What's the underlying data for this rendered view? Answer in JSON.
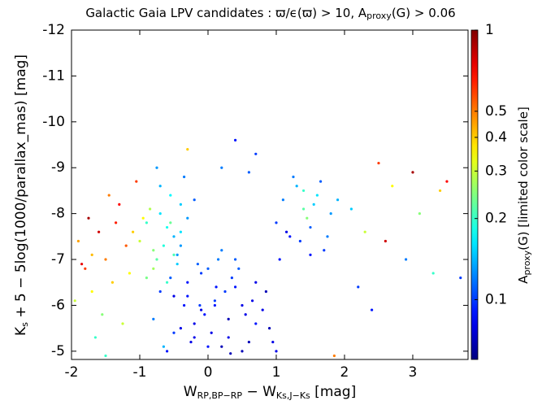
{
  "chart_data": {
    "type": "scatter",
    "title": [
      "Galactic Gaia LPV candidates :  ϖ/ϵ(ϖ) > 10,  A",
      "proxy",
      "(G) > 0.06"
    ],
    "x_label": [
      "W",
      "RP,BP−RP",
      " − W",
      "Ks,J−Ks",
      "  [mag]"
    ],
    "y_label": [
      "K",
      "s",
      " + 5 − 5log(1000/parallax_mas)  [mag]"
    ],
    "colorbar_label": [
      "A",
      "proxy",
      "(G)  [limited color scale]"
    ],
    "xlim": [
      -2,
      3.81
    ],
    "xticks": [
      -2,
      -1,
      0,
      1,
      2,
      3
    ],
    "ylim": [
      -4.82,
      -12
    ],
    "yticks": [
      -12,
      -11,
      -10,
      -9,
      -8,
      -7,
      -6,
      -5
    ],
    "colormap": "jet",
    "color_scale": "log",
    "clim": [
      0.06,
      1
    ],
    "cticks": [
      0.1,
      0.2,
      0.3,
      0.4,
      0.5,
      1
    ],
    "x": [
      -0.5,
      -0.3,
      -0.1,
      0.1,
      0.3,
      0.5,
      0.7,
      -0.7,
      -0.2,
      0.2,
      0.0,
      0.4,
      -0.4,
      0.6,
      0.8,
      -0.6,
      0.15,
      -0.15,
      0.35,
      -0.35,
      0.05,
      -0.05,
      0.25,
      -0.25,
      0.45,
      -0.45,
      0.65,
      0.9,
      1.0,
      -0.8,
      0.1,
      -0.1,
      0.3,
      -0.3,
      0.5,
      -0.5,
      0.2,
      -0.2,
      0.0,
      0.7,
      -0.4,
      0.4,
      0.55,
      -0.55,
      0.85,
      0.95,
      -0.65,
      0.12,
      -0.12,
      0.33,
      -0.9,
      -0.7,
      -0.5,
      -0.8,
      -0.6,
      -0.4,
      -1.0,
      -0.75,
      -0.55,
      -0.3,
      -0.85,
      -0.65,
      -0.45,
      -0.95,
      -0.7,
      -0.5,
      -0.35,
      -0.8,
      -0.6,
      -1.1,
      -0.9,
      -0.4,
      -0.2,
      -0.75,
      -0.55,
      -1.9,
      -1.8,
      -1.7,
      -1.6,
      -1.5,
      -1.4,
      -1.3,
      -1.2,
      -1.95,
      -1.75,
      -1.55,
      -1.35,
      -1.15,
      -1.65,
      -1.45,
      -1.25,
      -1.85,
      -1.05,
      -1.5,
      -1.7,
      1.0,
      1.1,
      1.2,
      1.3,
      1.4,
      1.5,
      1.6,
      1.7,
      1.8,
      1.05,
      1.25,
      1.45,
      1.65,
      1.35,
      1.55,
      1.15,
      1.75,
      1.4,
      1.5,
      1.9,
      2.1,
      2.3,
      2.5,
      2.7,
      2.9,
      3.1,
      3.3,
      3.5,
      3.7,
      2.2,
      2.6,
      3.0,
      3.4,
      2.4,
      1.85,
      0.4,
      0.7,
      0.6,
      -0.3,
      0.2
    ],
    "y": [
      -6.2,
      -6.5,
      -5.9,
      -6.1,
      -5.7,
      -6.0,
      -5.6,
      -6.3,
      -5.3,
      -5.1,
      -6.8,
      -6.4,
      -5.5,
      -5.2,
      -5.9,
      -5.0,
      -7.0,
      -6.9,
      -6.6,
      -6.0,
      -5.4,
      -5.8,
      -6.3,
      -5.2,
      -6.8,
      -7.1,
      -6.1,
      -5.5,
      -5.0,
      -5.7,
      -6.0,
      -6.7,
      -5.3,
      -6.2,
      -5.0,
      -5.4,
      -7.2,
      -5.6,
      -5.1,
      -6.5,
      -7.3,
      -7.0,
      -5.8,
      -6.6,
      -6.3,
      -5.2,
      -5.1,
      -6.4,
      -6.0,
      -4.95,
      -7.8,
      -8.0,
      -7.5,
      -7.2,
      -7.7,
      -8.2,
      -7.4,
      -7.0,
      -8.4,
      -7.9,
      -8.1,
      -7.3,
      -6.9,
      -7.9,
      -8.6,
      -7.1,
      -8.8,
      -6.8,
      -6.5,
      -7.6,
      -6.6,
      -7.6,
      -8.3,
      -9.0,
      -7.8,
      -7.4,
      -6.8,
      -6.3,
      -7.6,
      -7.0,
      -6.5,
      -8.2,
      -7.3,
      -6.1,
      -7.9,
      -5.8,
      -7.8,
      -6.7,
      -5.3,
      -8.4,
      -5.6,
      -6.9,
      -8.7,
      -4.9,
      -7.1,
      -7.8,
      -8.3,
      -7.5,
      -8.6,
      -8.1,
      -7.7,
      -8.4,
      -7.2,
      -8.0,
      -7.0,
      -8.8,
      -7.9,
      -8.7,
      -7.4,
      -8.2,
      -7.6,
      -7.5,
      -8.5,
      -7.1,
      -8.3,
      -8.1,
      -7.6,
      -9.1,
      -8.6,
      -7.0,
      -8.0,
      -6.7,
      -8.7,
      -6.6,
      -6.4,
      -7.4,
      -8.9,
      -8.5,
      -5.9,
      -4.9,
      -9.6,
      -9.3,
      -8.9,
      -9.4,
      -9.0
    ],
    "color_values": [
      0.08,
      0.09,
      0.08,
      0.1,
      0.07,
      0.08,
      0.09,
      0.1,
      0.08,
      0.07,
      0.11,
      0.09,
      0.08,
      0.07,
      0.08,
      0.09,
      0.12,
      0.11,
      0.1,
      0.09,
      0.08,
      0.09,
      0.1,
      0.08,
      0.11,
      0.13,
      0.08,
      0.07,
      0.08,
      0.12,
      0.09,
      0.1,
      0.08,
      0.09,
      0.07,
      0.1,
      0.12,
      0.08,
      0.09,
      0.08,
      0.13,
      0.11,
      0.08,
      0.11,
      0.07,
      0.08,
      0.14,
      0.09,
      0.1,
      0.07,
      0.2,
      0.16,
      0.14,
      0.25,
      0.18,
      0.15,
      0.3,
      0.22,
      0.17,
      0.13,
      0.28,
      0.19,
      0.15,
      0.35,
      0.14,
      0.21,
      0.12,
      0.27,
      0.2,
      0.4,
      0.24,
      0.16,
      0.11,
      0.13,
      0.23,
      0.45,
      0.6,
      0.35,
      0.8,
      0.5,
      0.4,
      0.7,
      0.55,
      0.3,
      0.9,
      0.25,
      0.65,
      0.35,
      0.2,
      0.5,
      0.3,
      0.75,
      0.6,
      0.2,
      0.42,
      0.1,
      0.12,
      0.09,
      0.14,
      0.22,
      0.11,
      0.16,
      0.1,
      0.13,
      0.09,
      0.12,
      0.25,
      0.11,
      0.1,
      0.15,
      0.08,
      0.12,
      0.2,
      0.09,
      0.14,
      0.15,
      0.3,
      0.6,
      0.35,
      0.12,
      0.25,
      0.2,
      0.7,
      0.1,
      0.1,
      0.8,
      0.9,
      0.4,
      0.09,
      0.5,
      0.09,
      0.1,
      0.11,
      0.4,
      0.12
    ]
  }
}
